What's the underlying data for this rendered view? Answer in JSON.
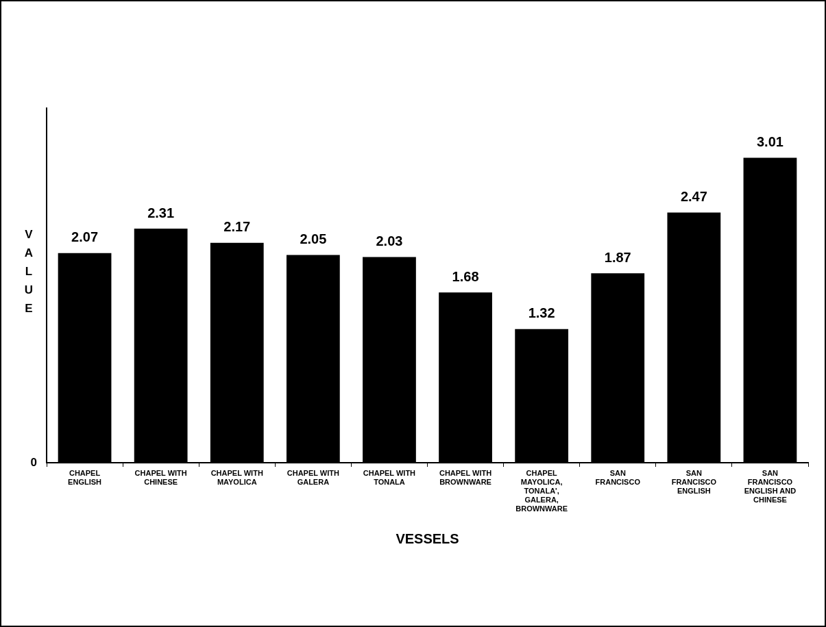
{
  "chart_data": {
    "type": "bar",
    "xlabel": "VESSELS",
    "ylabel": "VALUE",
    "categories": [
      "CHAPEL ENGLISH",
      "CHAPEL WITH CHINESE",
      "CHAPEL WITH MAYOLICA",
      "CHAPEL WITH GALERA",
      "CHAPEL WITH TONALA",
      "CHAPEL WITH BROWNWARE",
      "CHAPEL MAYOLICA, TONALA', GALERA, BROWNWARE",
      "SAN FRANCISCO",
      "SAN FRANCISCO ENGLISH",
      "SAN FRANCISCO ENGLISH AND CHINESE"
    ],
    "values": [
      2.07,
      2.31,
      2.17,
      2.05,
      2.03,
      1.68,
      1.32,
      1.87,
      2.47,
      3.01
    ],
    "color": "#000000",
    "ylim": [
      0,
      3.5
    ],
    "annotations": [
      "0"
    ],
    "data_labels": true,
    "grid": false,
    "legend": false
  }
}
